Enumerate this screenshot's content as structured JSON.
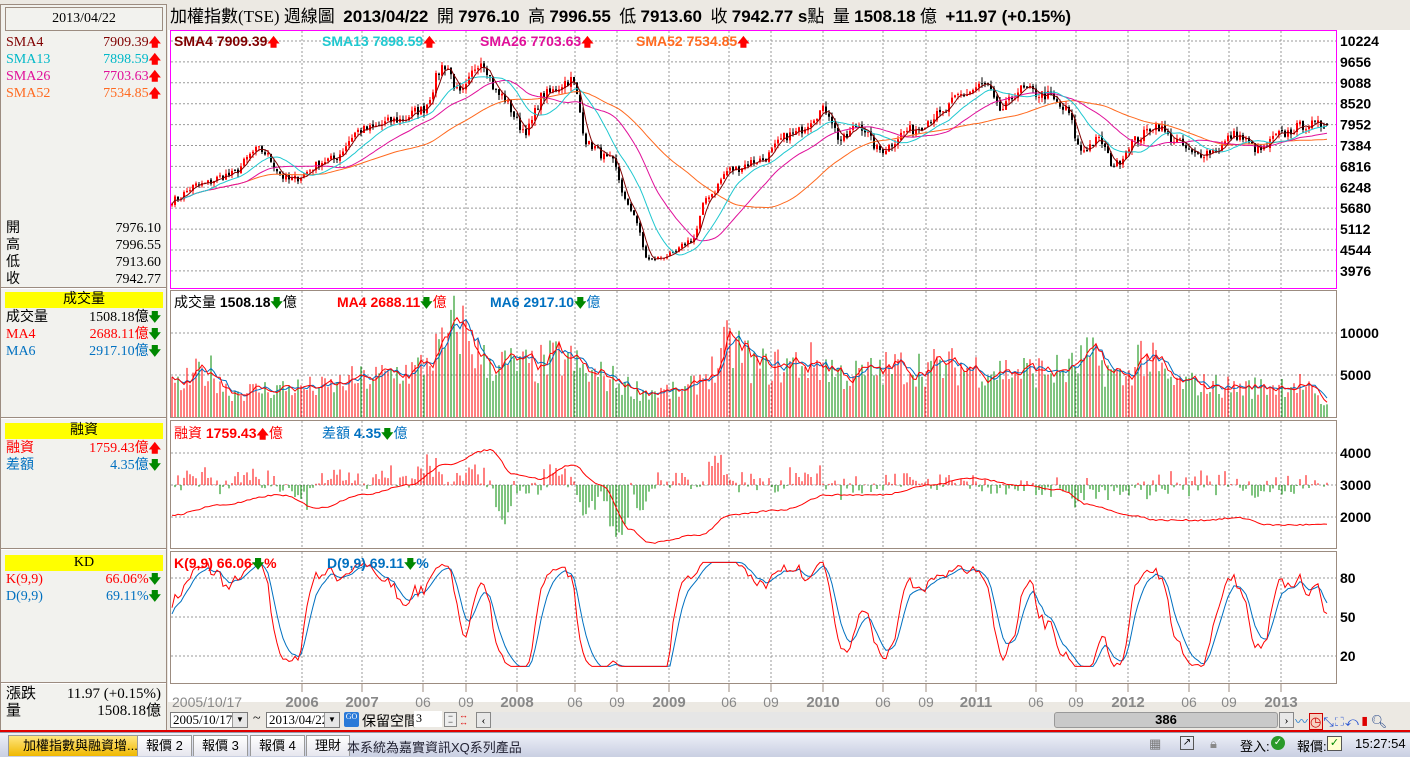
{
  "left": {
    "date": "2013/04/22",
    "sma": [
      {
        "label": "SMA4",
        "value": "7909.39",
        "color": "#800000"
      },
      {
        "label": "SMA13",
        "value": "7898.59",
        "color": "#00b8c8"
      },
      {
        "label": "SMA26",
        "value": "7703.63",
        "color": "#e0109a"
      },
      {
        "label": "SMA52",
        "value": "7534.85",
        "color": "#ff6a20"
      }
    ],
    "ohlc": [
      {
        "label": "開",
        "value": "7976.10"
      },
      {
        "label": "高",
        "value": "7996.55"
      },
      {
        "label": "低",
        "value": "7913.60"
      },
      {
        "label": "收",
        "value": "7942.77"
      }
    ],
    "volume_header": "成交量",
    "volume_rows": [
      {
        "label": "成交量",
        "value": "1508.18億",
        "color": "#000000"
      },
      {
        "label": "MA4",
        "value": "2688.11億",
        "color": "#ff0000"
      },
      {
        "label": "MA6",
        "value": "2917.10億",
        "color": "#0070c0"
      }
    ],
    "margin_header": "融資",
    "margin_rows": [
      {
        "label": "融資",
        "value": "1759.43億",
        "color": "#ff0000",
        "dir": "up"
      },
      {
        "label": "差額",
        "value": "4.35億",
        "color": "#0070c0",
        "dir": "down"
      }
    ],
    "kd_header": "KD",
    "kd_rows": [
      {
        "label": "K(9,9)",
        "value": "66.06%",
        "color": "#ff0000"
      },
      {
        "label": "D(9,9)",
        "value": "69.11%",
        "color": "#0070c0"
      }
    ],
    "change_label": "漲跌",
    "change_value": "11.97 (+0.15%)",
    "vol_label": "量",
    "vol_value": "1508.18億"
  },
  "title": {
    "name": "加權指數(TSE)",
    "period": "週線圖",
    "date": "2013/04/22",
    "open_label": "開",
    "open": "7976.10",
    "high_label": "高",
    "high": "7996.55",
    "low_label": "低",
    "low": "7913.60",
    "close_label": "收",
    "close": "7942.77 s",
    "unit": "點",
    "vol_label": "量",
    "vol": "1508.18",
    "vol_unit": "億",
    "change": "+11.97 (+0.15%)"
  },
  "legends": {
    "sma4": "SMA4 7909.39",
    "sma13": "SMA13 7898.59",
    "sma26": "SMA26 7703.63",
    "sma52": "SMA52 7534.85",
    "vol_label": "成交量",
    "vol": "1508.18",
    "ma4": "MA4 2688.11",
    "ma6": "MA6 2917.10",
    "yi": "億",
    "margin_label": "融資",
    "margin": "1759.43",
    "diff_label": "差額",
    "diff": "4.35",
    "k": "K(9,9) 66.06",
    "d": "D(9,9) 69.11",
    "pct": "%",
    "up_arrow": "🡅",
    "down_arrow": "🡇"
  },
  "controls": {
    "start_date": "2005/10/17",
    "tilde": "~",
    "end_date": "2013/04/22",
    "reserve_label": "保留空間",
    "reserve_value": "3",
    "scroll_value": "386"
  },
  "tabs": [
    {
      "label": "加權指數與融資增...",
      "active": true
    },
    {
      "label": "報價 2"
    },
    {
      "label": "報價 3"
    },
    {
      "label": "報價 4"
    },
    {
      "label": "理財"
    }
  ],
  "status": {
    "message": "本系統為嘉實資訊XQ系列產品",
    "login_label": "登入:",
    "quote_label": "報價:",
    "time": "15:27:54"
  },
  "chart_data": [
    {
      "type": "candlestick",
      "title": "加權指數(TSE) 週線圖",
      "x_range": [
        "2005/10/17",
        "2013/04/22"
      ],
      "weeks": 386,
      "x_ticks": [
        "2005/10/17",
        "2006",
        "2007",
        "06",
        "09",
        "2008",
        "06",
        "09",
        "2009",
        "06",
        "09",
        "2010",
        "06",
        "09",
        "2011",
        "06",
        "09",
        "2012",
        "06",
        "09",
        "2013"
      ],
      "y_ticks": [
        10224,
        9656,
        9088,
        8520,
        7952,
        7384,
        6816,
        6248,
        5680,
        5112,
        4544,
        3976
      ],
      "close_anchors": [
        [
          0,
          5900
        ],
        [
          9,
          6310
        ],
        [
          19,
          6580
        ],
        [
          29,
          7260
        ],
        [
          39,
          6450
        ],
        [
          53,
          7000
        ],
        [
          63,
          7800
        ],
        [
          76,
          8080
        ],
        [
          83,
          8350
        ],
        [
          91,
          9570
        ],
        [
          96,
          8760
        ],
        [
          103,
          9700
        ],
        [
          109,
          8760
        ],
        [
          118,
          7800
        ],
        [
          124,
          8760
        ],
        [
          133,
          9160
        ],
        [
          139,
          7400
        ],
        [
          146,
          6990
        ],
        [
          153,
          5630
        ],
        [
          159,
          4270
        ],
        [
          166,
          4400
        ],
        [
          173,
          4800
        ],
        [
          179,
          6040
        ],
        [
          186,
          6720
        ],
        [
          196,
          6990
        ],
        [
          206,
          7670
        ],
        [
          218,
          8350
        ],
        [
          223,
          7530
        ],
        [
          229,
          7940
        ],
        [
          236,
          7260
        ],
        [
          246,
          7800
        ],
        [
          256,
          8210
        ],
        [
          263,
          8760
        ],
        [
          271,
          9030
        ],
        [
          276,
          8350
        ],
        [
          283,
          8900
        ],
        [
          291,
          8760
        ],
        [
          298,
          8350
        ],
        [
          303,
          7260
        ],
        [
          309,
          7530
        ],
        [
          314,
          6850
        ],
        [
          321,
          7530
        ],
        [
          328,
          7940
        ],
        [
          334,
          7530
        ],
        [
          341,
          7130
        ],
        [
          348,
          7260
        ],
        [
          354,
          7670
        ],
        [
          363,
          7260
        ],
        [
          369,
          7670
        ],
        [
          378,
          7940
        ],
        [
          385,
          7943
        ]
      ],
      "series": [
        "SMA4",
        "SMA13",
        "SMA26",
        "SMA52"
      ]
    },
    {
      "type": "bar",
      "title": "成交量",
      "unit": "億",
      "y_ticks": [
        10000,
        5000
      ],
      "level_anchors": [
        [
          0,
          3500
        ],
        [
          12,
          5500
        ],
        [
          20,
          3000
        ],
        [
          40,
          3500
        ],
        [
          50,
          3500
        ],
        [
          63,
          4500
        ],
        [
          80,
          5500
        ],
        [
          90,
          8000
        ],
        [
          95,
          11000
        ],
        [
          105,
          6500
        ],
        [
          120,
          6000
        ],
        [
          130,
          7000
        ],
        [
          140,
          5000
        ],
        [
          160,
          3000
        ],
        [
          170,
          3000
        ],
        [
          180,
          5500
        ],
        [
          186,
          8500
        ],
        [
          196,
          6000
        ],
        [
          215,
          6500
        ],
        [
          225,
          5000
        ],
        [
          245,
          6000
        ],
        [
          260,
          6000
        ],
        [
          280,
          5500
        ],
        [
          298,
          5500
        ],
        [
          305,
          7000
        ],
        [
          318,
          4500
        ],
        [
          322,
          7500
        ],
        [
          335,
          4000
        ],
        [
          360,
          3500
        ],
        [
          375,
          4000
        ],
        [
          385,
          1508
        ]
      ],
      "series": [
        "成交量",
        "MA4",
        "MA6"
      ]
    },
    {
      "type": "line",
      "title": "融資",
      "unit": "億",
      "y_ticks": [
        4000,
        3000,
        2000
      ],
      "margin_anchors": [
        [
          0,
          2060
        ],
        [
          16,
          2375
        ],
        [
          36,
          2690
        ],
        [
          49,
          2280
        ],
        [
          63,
          2690
        ],
        [
          79,
          3000
        ],
        [
          91,
          3630
        ],
        [
          106,
          4100
        ],
        [
          114,
          3340
        ],
        [
          123,
          3190
        ],
        [
          133,
          3630
        ],
        [
          143,
          3000
        ],
        [
          153,
          1600
        ],
        [
          159,
          1190
        ],
        [
          176,
          1440
        ],
        [
          186,
          2060
        ],
        [
          203,
          2220
        ],
        [
          219,
          2690
        ],
        [
          236,
          2690
        ],
        [
          253,
          3000
        ],
        [
          266,
          3220
        ],
        [
          283,
          3000
        ],
        [
          296,
          2840
        ],
        [
          306,
          2375
        ],
        [
          319,
          2060
        ],
        [
          329,
          1900
        ],
        [
          343,
          1900
        ],
        [
          356,
          1970
        ],
        [
          366,
          1750
        ],
        [
          385,
          1759
        ]
      ],
      "series": [
        "融資",
        "差額"
      ]
    },
    {
      "type": "line",
      "title": "KD",
      "y_ticks": [
        80,
        50,
        20
      ],
      "series": [
        "K(9,9)",
        "D(9,9)"
      ],
      "last": {
        "K": 66.06,
        "D": 69.11
      }
    }
  ]
}
